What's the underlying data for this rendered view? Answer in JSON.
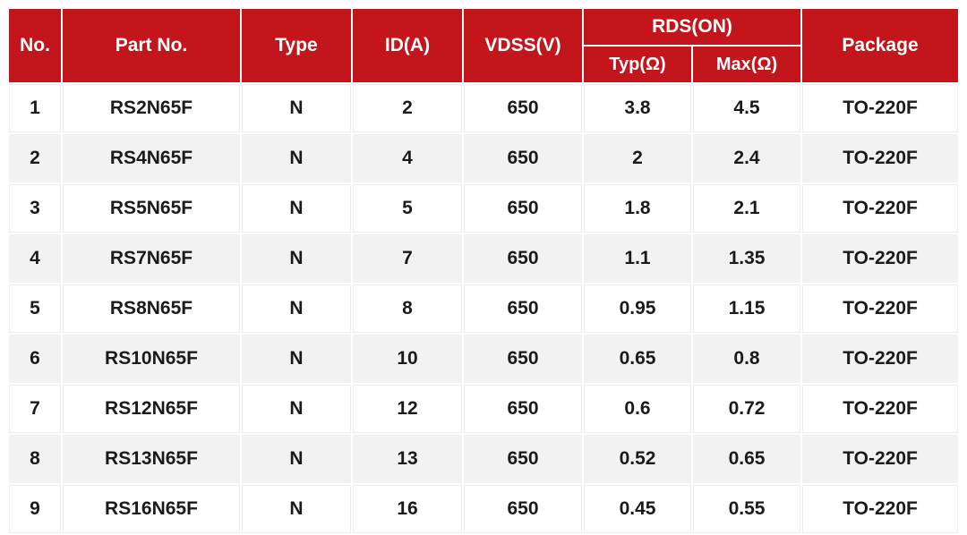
{
  "table": {
    "column_keys": [
      "no",
      "part_no",
      "type",
      "id_a",
      "vdss_v",
      "rds_typ",
      "rds_max",
      "package"
    ],
    "columns": [
      {
        "key": "no",
        "label": "No."
      },
      {
        "key": "part_no",
        "label": "Part No."
      },
      {
        "key": "type",
        "label": "Type"
      },
      {
        "key": "id_a",
        "label": "ID(A)"
      },
      {
        "key": "vdss_v",
        "label": "VDSS(V)"
      },
      {
        "key": "rds_on",
        "label": "RDS(ON)",
        "children": [
          {
            "key": "rds_typ",
            "label": "Typ(Ω)"
          },
          {
            "key": "rds_max",
            "label": "Max(Ω)"
          }
        ]
      },
      {
        "key": "package",
        "label": "Package"
      }
    ],
    "rows": [
      [
        "1",
        "RS2N65F",
        "N",
        "2",
        "650",
        "3.8",
        "4.5",
        "TO-220F"
      ],
      [
        "2",
        "RS4N65F",
        "N",
        "4",
        "650",
        "2",
        "2.4",
        "TO-220F"
      ],
      [
        "3",
        "RS5N65F",
        "N",
        "5",
        "650",
        "1.8",
        "2.1",
        "TO-220F"
      ],
      [
        "4",
        "RS7N65F",
        "N",
        "7",
        "650",
        "1.1",
        "1.35",
        "TO-220F"
      ],
      [
        "5",
        "RS8N65F",
        "N",
        "8",
        "650",
        "0.95",
        "1.15",
        "TO-220F"
      ],
      [
        "6",
        "RS10N65F",
        "N",
        "10",
        "650",
        "0.65",
        "0.8",
        "TO-220F"
      ],
      [
        "7",
        "RS12N65F",
        "N",
        "12",
        "650",
        "0.6",
        "0.72",
        "TO-220F"
      ],
      [
        "8",
        "RS13N65F",
        "N",
        "13",
        "650",
        "0.52",
        "0.65",
        "TO-220F"
      ],
      [
        "9",
        "RS16N65F",
        "N",
        "16",
        "650",
        "0.45",
        "0.55",
        "TO-220F"
      ]
    ]
  },
  "colors": {
    "header_bg": "#c2151c",
    "header_text": "#ffffff",
    "row_bg": "#ffffff",
    "row_alt_bg": "#f2f2f2",
    "body_text": "#1b1b1b",
    "cell_border": "#ededed"
  }
}
